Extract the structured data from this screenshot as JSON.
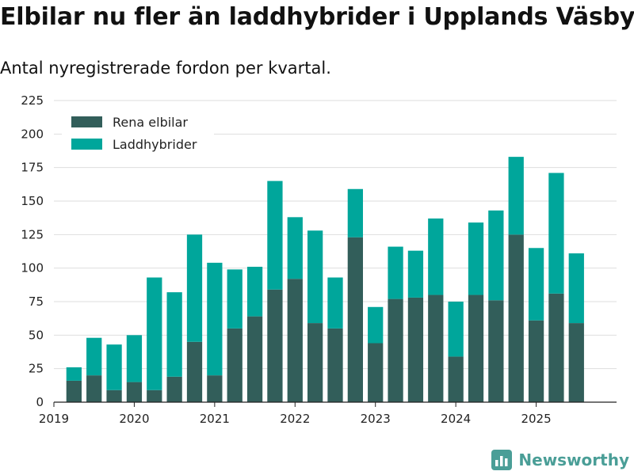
{
  "chart_data": {
    "type": "bar",
    "stacked": true,
    "title": "Elbilar nu fler än laddhybrider i Upplands Väsby",
    "subtitle": "Antal nyregistrerade fordon per kvartal.",
    "xlabel": "",
    "ylabel": "",
    "ylim": [
      0,
      225
    ],
    "yticks": [
      0,
      25,
      50,
      75,
      100,
      125,
      150,
      175,
      200,
      225
    ],
    "xlim": [
      2019.0,
      2026.0
    ],
    "xticks": [
      2019,
      2020,
      2021,
      2022,
      2023,
      2024,
      2025
    ],
    "xtick_labels": [
      "2019",
      "2020",
      "2021",
      "2022",
      "2023",
      "2024",
      "2025"
    ],
    "grid": true,
    "legend_position": "top-left",
    "quarters": [
      "2019 Q2",
      "2019 Q3",
      "2019 Q4",
      "2020 Q1",
      "2020 Q2",
      "2020 Q3",
      "2020 Q4",
      "2021 Q1",
      "2021 Q2",
      "2021 Q3",
      "2021 Q4",
      "2022 Q1",
      "2022 Q2",
      "2022 Q3",
      "2022 Q4",
      "2023 Q1",
      "2023 Q2",
      "2023 Q3",
      "2023 Q4",
      "2024 Q1",
      "2024 Q2",
      "2024 Q3",
      "2024 Q4",
      "2025 Q1",
      "2025 Q2",
      "2025 Q3"
    ],
    "x": [
      2019.25,
      2019.5,
      2019.75,
      2020.0,
      2020.25,
      2020.5,
      2020.75,
      2021.0,
      2021.25,
      2021.5,
      2021.75,
      2022.0,
      2022.25,
      2022.5,
      2022.75,
      2023.0,
      2023.25,
      2023.5,
      2023.75,
      2024.0,
      2024.25,
      2024.5,
      2024.75,
      2025.0,
      2025.25,
      2025.5
    ],
    "bar_width": 0.19,
    "series": [
      {
        "name": "Rena elbilar",
        "color": "#325e5a",
        "values": [
          16,
          20,
          9,
          15,
          9,
          19,
          45,
          20,
          55,
          64,
          84,
          92,
          59,
          55,
          123,
          44,
          77,
          78,
          80,
          34,
          80,
          76,
          125,
          61,
          81,
          59
        ]
      },
      {
        "name": "Laddhybrider",
        "color": "#00a69b",
        "values": [
          10,
          28,
          34,
          35,
          84,
          63,
          80,
          84,
          44,
          37,
          81,
          46,
          69,
          38,
          36,
          27,
          39,
          35,
          57,
          41,
          54,
          67,
          58,
          54,
          90,
          52
        ]
      }
    ]
  },
  "brand": {
    "name": "Newsworthy",
    "icon": "bar-chart-logo-icon",
    "color": "#4a9e97"
  }
}
